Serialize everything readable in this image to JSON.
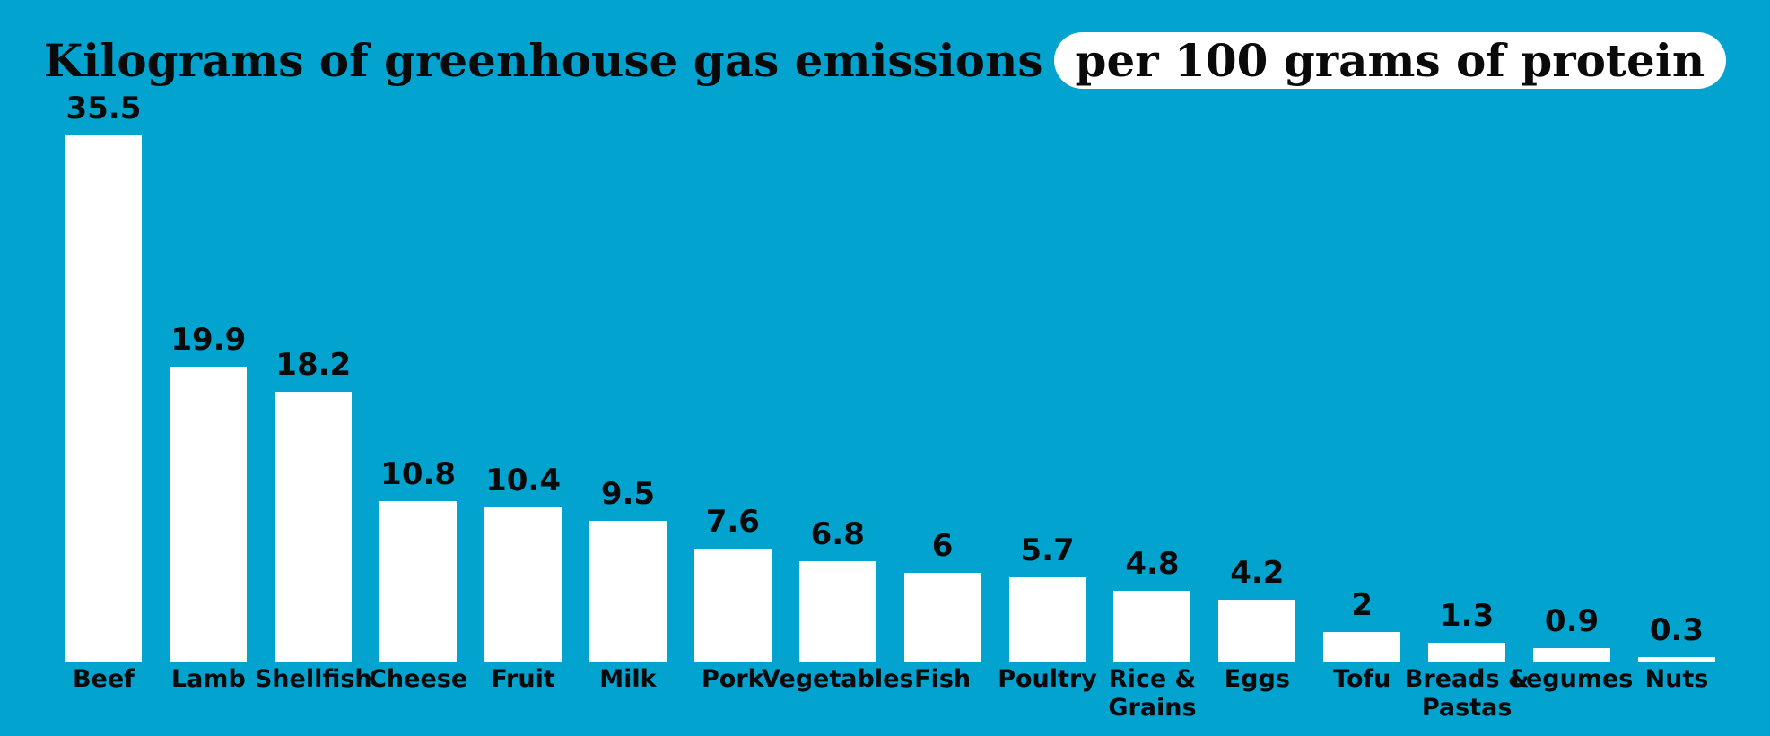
{
  "title": {
    "plain": "Kilograms of greenhouse gas emissions",
    "highlight": "per 100 grams of protein"
  },
  "colors": {
    "background": "#02a3cf",
    "bar_fill": "#ffffff",
    "text": "#0a0a0a",
    "highlight_pill_background": "#ffffff"
  },
  "chart_data": {
    "type": "bar",
    "title": "Kilograms of greenhouse gas emissions per 100 grams of protein",
    "orientation": "vertical",
    "categories": [
      "Beef",
      "Lamb",
      "Shellfish",
      "Cheese",
      "Fruit",
      "Milk",
      "Pork",
      "Vegetables",
      "Fish",
      "Poultry",
      "Rice & Grains",
      "Eggs",
      "Tofu",
      "Breads & Pastas",
      "Legumes",
      "Nuts"
    ],
    "category_labels": [
      "Beef",
      "Lamb",
      "Shellfish",
      "Cheese",
      "Fruit",
      "Milk",
      "Pork",
      "Vegetables",
      "Fish",
      "Poultry",
      "Rice &\nGrains",
      "Eggs",
      "Tofu",
      "Breads &\nPastas",
      "Legumes",
      "Nuts"
    ],
    "values": [
      35.5,
      19.9,
      18.2,
      10.8,
      10.4,
      9.5,
      7.6,
      6.8,
      6,
      5.7,
      4.8,
      4.2,
      2,
      1.3,
      0.9,
      0.3
    ],
    "value_labels": [
      "35.5",
      "19.9",
      "18.2",
      "10.8",
      "10.4",
      "9.5",
      "7.6",
      "6.8",
      "6",
      "5.7",
      "4.8",
      "4.2",
      "2",
      "1.3",
      "0.9",
      "0.3"
    ],
    "xlabel": "",
    "ylabel": "",
    "ylim": [
      0,
      35.5
    ],
    "grid": false,
    "axes_visible": false,
    "legend_position": "none",
    "bar_color": "#ffffff",
    "label_color": "#0a0a0a"
  }
}
